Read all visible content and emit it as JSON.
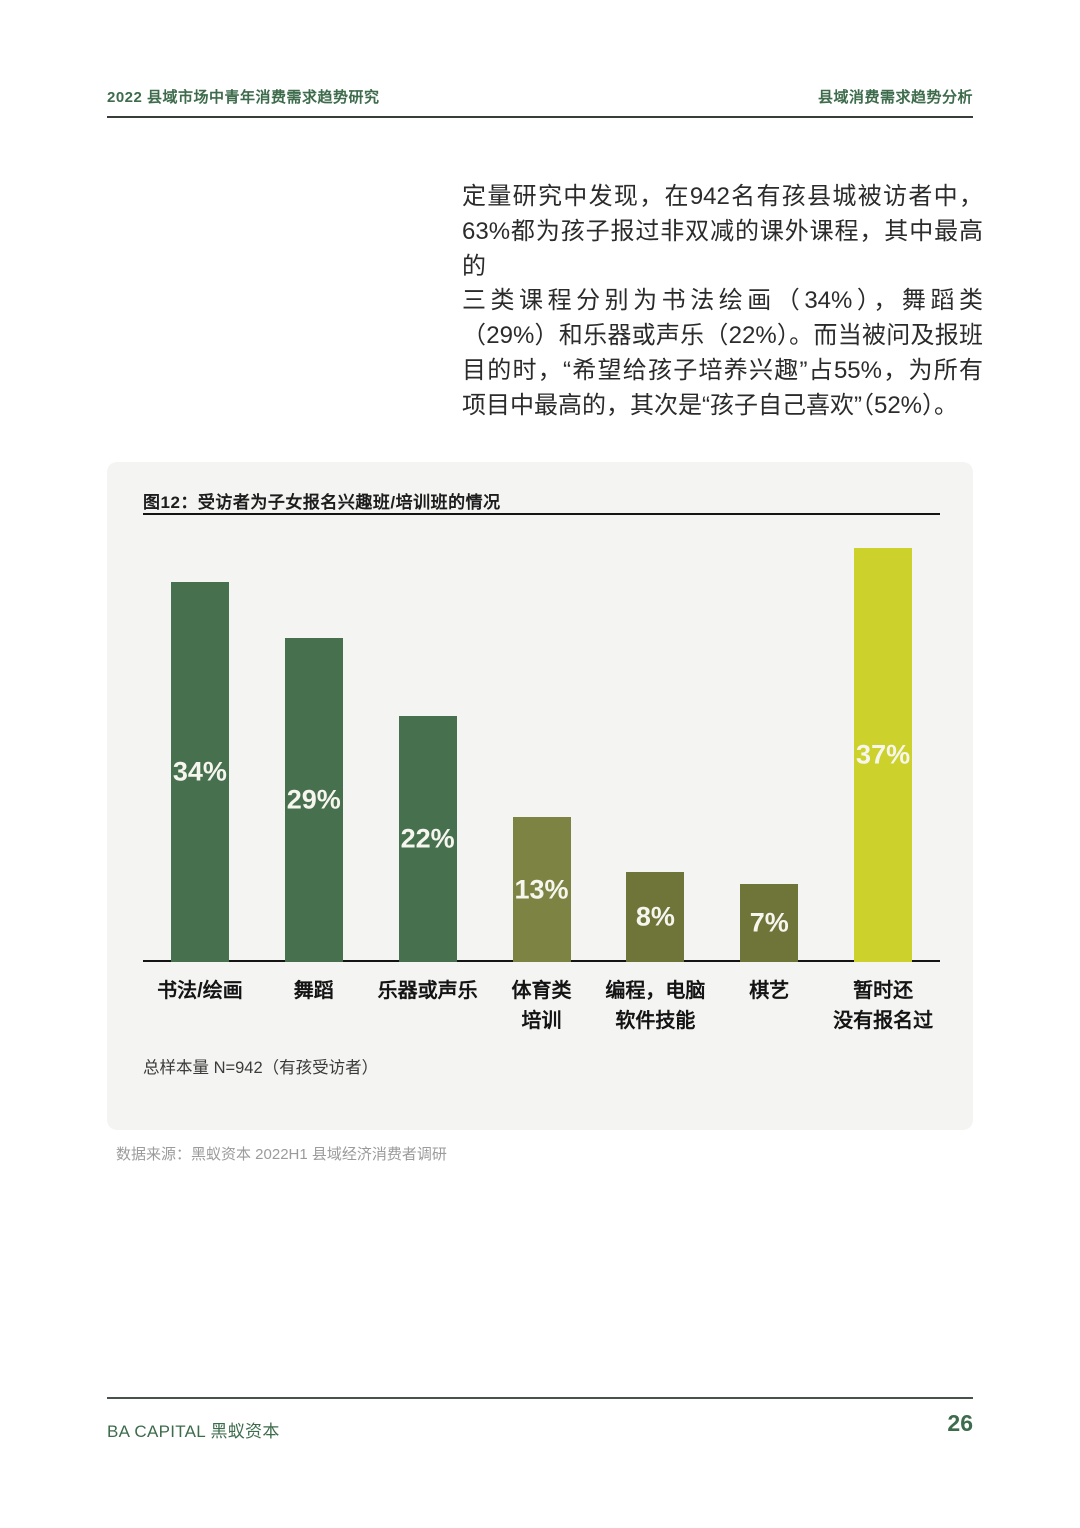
{
  "header": {
    "left_title": "2022 县域市场中青年消费需求趋势研究",
    "right_title": "县域消费需求趋势分析"
  },
  "intro_lines": [
    "定量研究中发现，在942名有孩县城被访者中，",
    "63%都为孩子报过非双减的课外课程，其中最高的",
    "三类课程分别为书法绘画（34%），舞蹈类",
    "（29%）和乐器或声乐（22%）。而当被问及报班",
    "目的时，“希望给孩子培养兴趣”占55%，为所有",
    "项目中最高的，其次是“孩子自己喜欢”（52%）。"
  ],
  "chart_data": {
    "type": "bar",
    "title": "图12：受访者为子女报名兴趣班/培训班的情况",
    "categories": [
      "书法/绘画",
      "舞蹈",
      "乐器或声乐",
      "体育类\n培训",
      "编程，电脑\n软件技能",
      "棋艺",
      "暂时还\n没有报名过"
    ],
    "values": [
      34,
      29,
      22,
      13,
      8,
      7,
      37
    ],
    "unit": "%",
    "value_labels": [
      "34%",
      "29%",
      "22%",
      "13%",
      "8%",
      "7%",
      "37%"
    ],
    "bar_colors": [
      "#47704e",
      "#47704e",
      "#47704e",
      "#7d8342",
      "#6f7439",
      "#6f7439",
      "#ccd22b"
    ],
    "ylim": [
      0,
      40
    ],
    "grid": false,
    "legend": false,
    "note": "总样本量 N=942（有孩受访者）",
    "source": "数据来源：黑蚁资本 2022H1 县域经济消费者调研"
  },
  "footer": {
    "brand": "BA CAPITAL 黑蚁资本",
    "page_number": "26"
  },
  "colors": {
    "brand_green": "#3d6b4b",
    "bar_green": "#47704e",
    "bar_olive": "#7d8342",
    "bar_dark_olive": "#6f7439",
    "bar_yellow": "#ccd22b",
    "card_background": "#f4f4f2",
    "value_label": "#f6f6ef",
    "source_gray": "#9b9b9b",
    "text_dark": "#2b2b2b"
  }
}
